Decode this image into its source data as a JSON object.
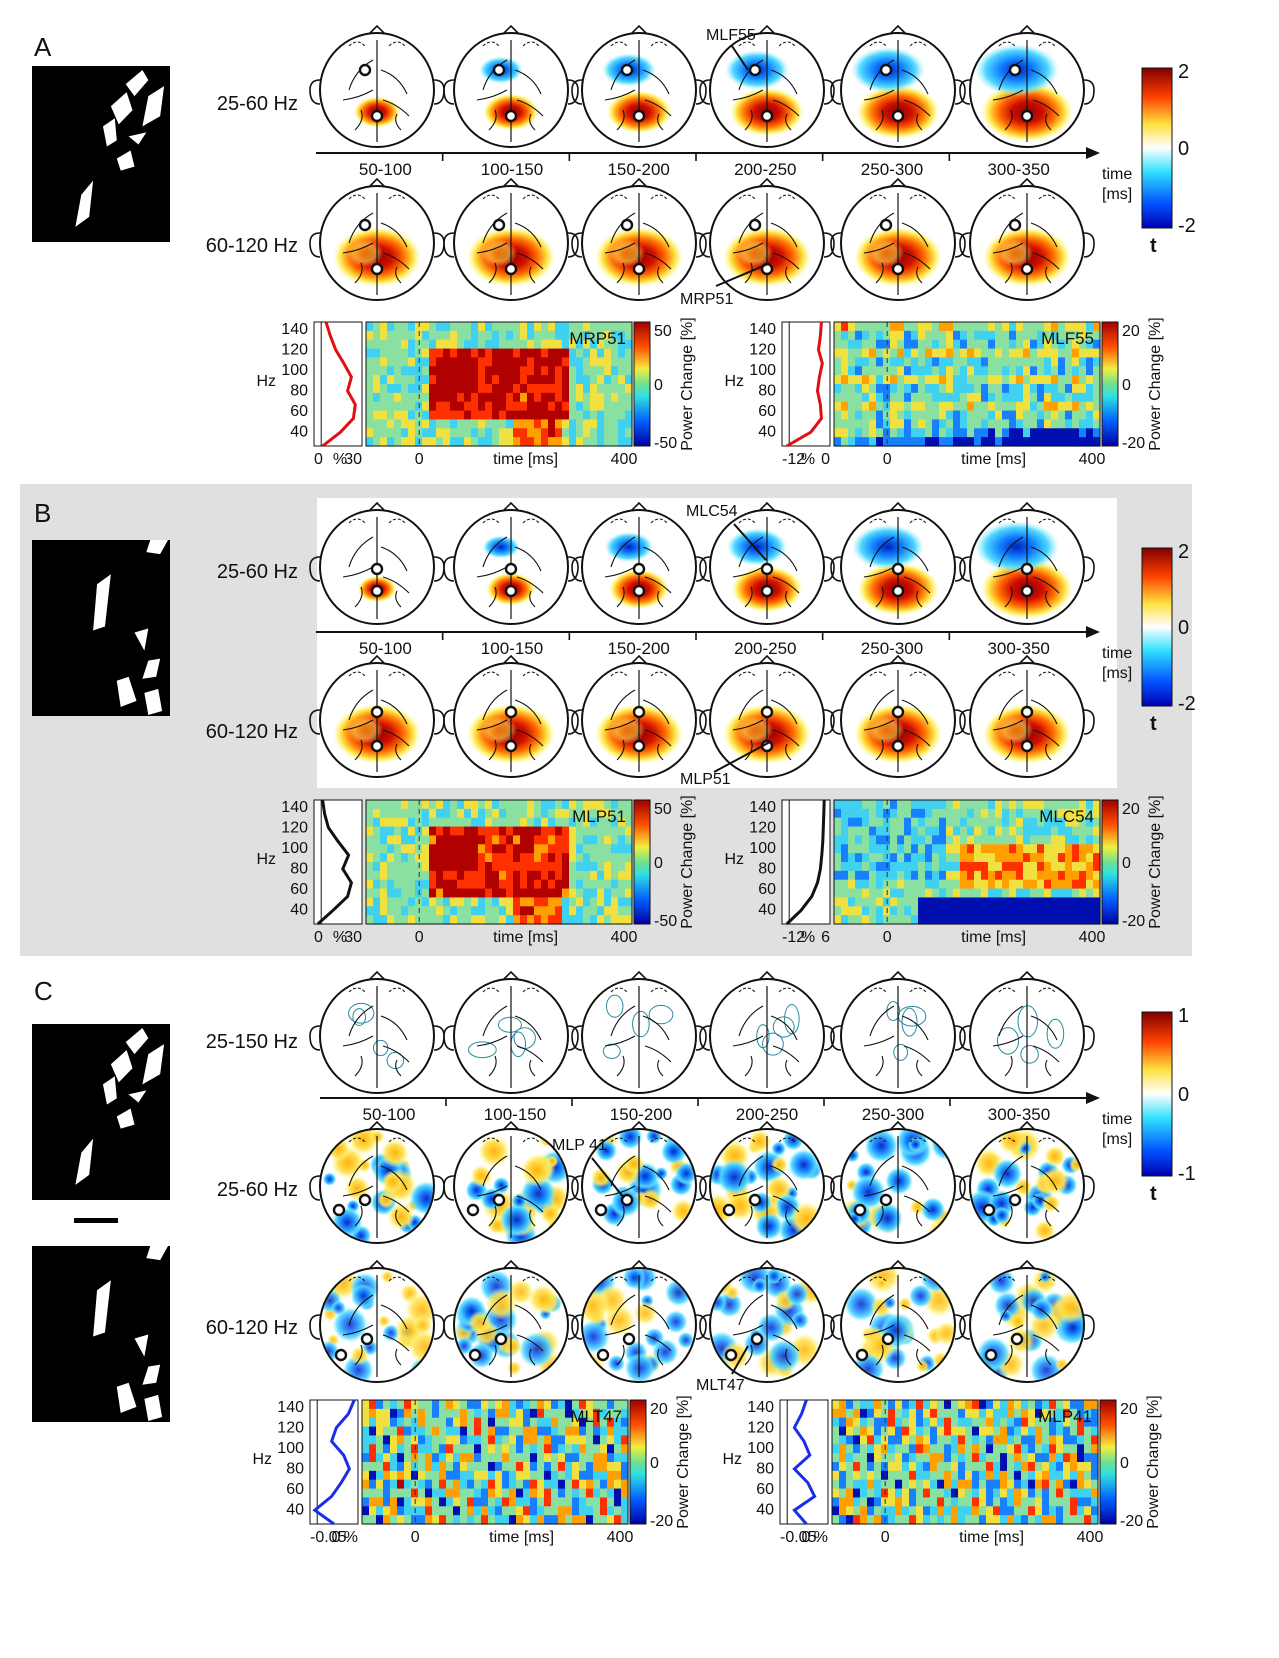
{
  "panels": [
    {
      "letter": "A",
      "bands": [
        "25-60 Hz",
        "60-120 Hz"
      ],
      "time_bins": [
        "50-100",
        "100-150",
        "150-200",
        "200-250",
        "250-300",
        "300-350"
      ],
      "axis_label_1": "time",
      "axis_label_2": "[ms]",
      "colorbar": {
        "max": "2",
        "mid": "0",
        "min": "-2",
        "unit": "t"
      },
      "sensor_callouts": [
        "MLF55",
        "MRP51"
      ],
      "tfr": [
        {
          "sensor": "MRP51",
          "yticks": [
            "140",
            "120",
            "100",
            "80",
            "60",
            "40"
          ],
          "ylabel": "Hz",
          "profile_ticks": [
            "0",
            "%",
            "30"
          ],
          "xticks": [
            "0",
            "time [ms]",
            "400"
          ],
          "cbar": [
            "50",
            "0",
            "-50"
          ],
          "cbar_label": "Power Change [%]",
          "line_color": "#e01010",
          "profile": [
            0.25,
            0.34,
            0.45,
            0.62,
            0.78,
            0.7,
            0.86,
            0.82,
            0.55,
            0.18
          ],
          "intensity": 1.0,
          "kind": "gamma"
        },
        {
          "sensor": "MLF55",
          "yticks": [
            "140",
            "120",
            "100",
            "80",
            "60",
            "40"
          ],
          "ylabel": "Hz",
          "profile_ticks": [
            "-12",
            "%",
            "0"
          ],
          "xticks": [
            "0",
            "time [ms]",
            "400"
          ],
          "cbar": [
            "20",
            "0",
            "-20"
          ],
          "cbar_label": "Power Change [%]",
          "line_color": "#e01010",
          "profile": [
            0.82,
            0.8,
            0.76,
            0.84,
            0.78,
            0.74,
            0.8,
            0.82,
            0.6,
            0.1
          ],
          "intensity": 0.35,
          "kind": "neg"
        }
      ]
    },
    {
      "letter": "B",
      "bands": [
        "25-60 Hz",
        "60-120 Hz"
      ],
      "time_bins": [
        "50-100",
        "100-150",
        "150-200",
        "200-250",
        "250-300",
        "300-350"
      ],
      "axis_label_1": "time",
      "axis_label_2": "[ms]",
      "colorbar": {
        "max": "2",
        "mid": "0",
        "min": "-2",
        "unit": "t"
      },
      "sensor_callouts": [
        "MLC54",
        "MLP51"
      ],
      "tfr": [
        {
          "sensor": "MLP51",
          "yticks": [
            "140",
            "120",
            "100",
            "80",
            "60",
            "40"
          ],
          "ylabel": "Hz",
          "profile_ticks": [
            "0",
            "%",
            "30"
          ],
          "xticks": [
            "0",
            "time [ms]",
            "400"
          ],
          "cbar": [
            "50",
            "0",
            "-50"
          ],
          "cbar_label": "Power Change [%]",
          "line_color": "#111111",
          "profile": [
            0.18,
            0.22,
            0.3,
            0.5,
            0.72,
            0.6,
            0.78,
            0.7,
            0.4,
            0.08
          ],
          "intensity": 0.95,
          "kind": "gamma"
        },
        {
          "sensor": "MLC54",
          "yticks": [
            "140",
            "120",
            "100",
            "80",
            "60",
            "40"
          ],
          "ylabel": "Hz",
          "profile_ticks": [
            "-12",
            "%",
            "6"
          ],
          "xticks": [
            "0",
            "time [ms]",
            "400"
          ],
          "cbar": [
            "20",
            "0",
            "-20"
          ],
          "cbar_label": "Power Change [%]",
          "line_color": "#111111",
          "profile": [
            0.88,
            0.87,
            0.86,
            0.85,
            0.83,
            0.8,
            0.74,
            0.62,
            0.4,
            0.1
          ],
          "intensity": 0.5,
          "kind": "mixed"
        }
      ]
    },
    {
      "letter": "C",
      "bands": [
        "25-150 Hz",
        "25-60 Hz",
        "60-120 Hz"
      ],
      "time_bins": [
        "50-100",
        "100-150",
        "150-200",
        "200-250",
        "250-300",
        "300-350"
      ],
      "axis_label_1": "time",
      "axis_label_2": "[ms]",
      "colorbar": {
        "max": "1",
        "mid": "0",
        "min": "-1",
        "unit": "t"
      },
      "sensor_callouts": [
        "MLP 41",
        "MLT47"
      ],
      "tfr": [
        {
          "sensor": "MLT47",
          "yticks": [
            "140",
            "120",
            "100",
            "80",
            "60",
            "40"
          ],
          "ylabel": "Hz",
          "profile_ticks": [
            "-0.05",
            "0",
            "%"
          ],
          "xticks": [
            "0",
            "time [ms]",
            "400"
          ],
          "cbar": [
            "20",
            "0",
            "-20"
          ],
          "cbar_label": "Power Change [%]",
          "line_color": "#1a2ee8",
          "profile": [
            0.92,
            0.8,
            0.55,
            0.45,
            0.7,
            0.82,
            0.65,
            0.45,
            0.1,
            0.5
          ],
          "intensity": 0.4,
          "kind": "noise"
        },
        {
          "sensor": "MLP41",
          "yticks": [
            "140",
            "120",
            "100",
            "80",
            "60",
            "40"
          ],
          "ylabel": "Hz",
          "profile_ticks": [
            "-0.05",
            "0",
            "%"
          ],
          "xticks": [
            "0",
            "time [ms]",
            "400"
          ],
          "cbar": [
            "20",
            "0",
            "-20"
          ],
          "cbar_label": "Power Change [%]",
          "line_color": "#1a2ee8",
          "profile": [
            0.55,
            0.45,
            0.3,
            0.5,
            0.62,
            0.3,
            0.58,
            0.72,
            0.3,
            0.55
          ],
          "intensity": 0.4,
          "kind": "noise"
        }
      ]
    }
  ]
}
